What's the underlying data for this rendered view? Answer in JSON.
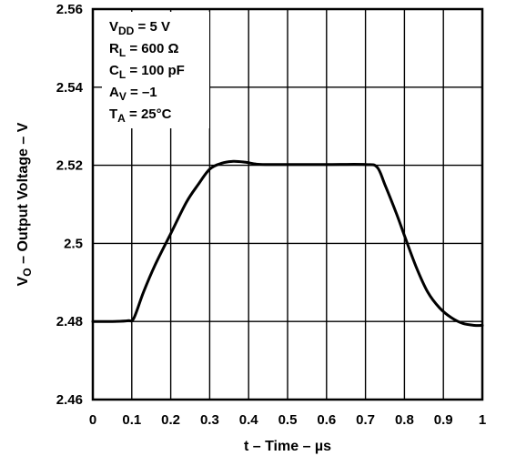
{
  "chart_data": {
    "type": "line",
    "title": "",
    "xlabel": "t – Time – µs",
    "ylabel": "V₀ – Output Voltage – V",
    "ylabel_parts": {
      "main": "V",
      "sub": "O",
      "rest": " – Output Voltage – V"
    },
    "xlim": [
      0,
      1
    ],
    "ylim": [
      2.46,
      2.56
    ],
    "grid": true,
    "x_ticks": [
      0,
      0.1,
      0.2,
      0.3,
      0.4,
      0.5,
      0.6,
      0.7,
      0.8,
      0.9,
      1
    ],
    "x_tick_labels": [
      "0",
      "0.1",
      "0.2",
      "0.3",
      "0.4",
      "0.5",
      "0.6",
      "0.7",
      "0.8",
      "0.9",
      "1"
    ],
    "y_ticks": [
      2.46,
      2.48,
      2.5,
      2.52,
      2.54,
      2.56
    ],
    "y_tick_labels": [
      "2.46",
      "2.48",
      "2.5",
      "2.52",
      "2.54",
      "2.56"
    ],
    "conditions": [
      {
        "main": "V",
        "sub": "DD",
        "rest": " = 5 V"
      },
      {
        "main": "R",
        "sub": "L",
        "rest": " = 600 Ω"
      },
      {
        "main": "C",
        "sub": "L",
        "rest": " = 100 pF"
      },
      {
        "main": "A",
        "sub": "V",
        "rest": " = –1"
      },
      {
        "main": "T",
        "sub": "A",
        "rest": " = 25°C"
      }
    ],
    "series": [
      {
        "x": [
          0,
          0.05,
          0.09,
          0.105,
          0.13,
          0.16,
          0.2,
          0.24,
          0.27,
          0.3,
          0.33,
          0.36,
          0.39,
          0.42,
          0.45,
          0.5,
          0.6,
          0.7,
          0.73,
          0.75,
          0.78,
          0.8,
          0.83,
          0.86,
          0.89,
          0.92,
          0.95,
          0.98,
          1.0
        ],
        "values": [
          2.48,
          2.48,
          2.4802,
          2.4808,
          2.4875,
          2.4945,
          2.5025,
          2.5105,
          2.515,
          2.519,
          2.5205,
          2.521,
          2.5208,
          2.5203,
          2.5202,
          2.5202,
          2.5202,
          2.5202,
          2.5195,
          2.515,
          2.5075,
          2.502,
          2.494,
          2.4875,
          2.4835,
          2.481,
          2.4795,
          2.479,
          2.479
        ]
      }
    ]
  }
}
